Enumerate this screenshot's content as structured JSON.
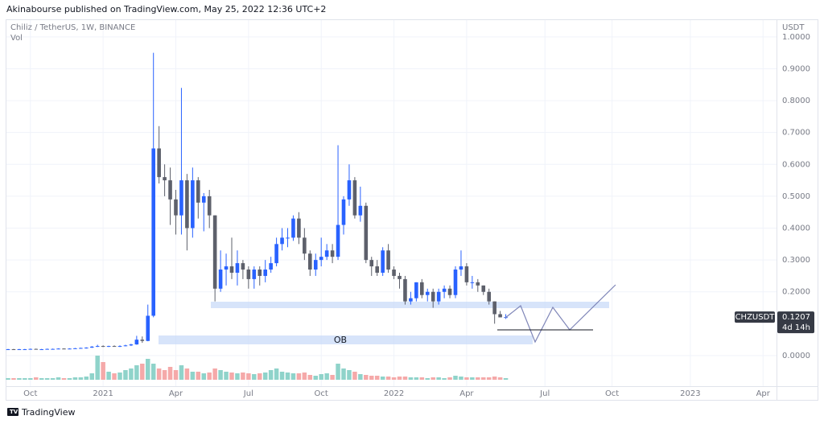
{
  "page": {
    "byline": "Akinabourse published on TradingView.com, May 25, 2022 12:36 UTC+2",
    "brand": "TradingView"
  },
  "chart_data": {
    "type": "candlestick",
    "title": "Chiliz / TetherUS, 1W, BINANCE",
    "volume_label": "Vol",
    "y_axis_label": "USDT",
    "symbol_tag": "CHZUSDT",
    "last_price": 0.1207,
    "countdown": "4d 14h",
    "annotation": "OB",
    "up_color": "#2962ff",
    "down_color": "#5d606b",
    "volume_up_color": "#8fd3ca",
    "volume_down_color": "#f5a9a9",
    "grid": true,
    "ylim": [
      -0.096,
      1.04
    ],
    "yticks": [
      {
        "value": 0,
        "label": "0.0000"
      },
      {
        "value": 0.2,
        "label": "0.2000"
      },
      {
        "value": 0.3,
        "label": "0.3000"
      },
      {
        "value": 0.4,
        "label": "0.4000"
      },
      {
        "value": 0.5,
        "label": "0.5000"
      },
      {
        "value": 0.6,
        "label": "0.6000"
      },
      {
        "value": 0.7,
        "label": "0.7000"
      },
      {
        "value": 0.8,
        "label": "0.8000"
      },
      {
        "value": 0.9,
        "label": "0.9000"
      },
      {
        "value": 1,
        "label": "1.0000"
      }
    ],
    "categories": [
      null,
      null,
      null,
      null,
      "Oct",
      null,
      null,
      null,
      null,
      null,
      null,
      null,
      null,
      null,
      null,
      null,
      null,
      "2021",
      null,
      null,
      null,
      null,
      null,
      null,
      null,
      null,
      null,
      null,
      null,
      null,
      "Apr",
      null,
      null,
      null,
      null,
      null,
      null,
      null,
      null,
      null,
      null,
      null,
      null,
      "Jul",
      null,
      null,
      null,
      null,
      null,
      null,
      null,
      null,
      null,
      null,
      null,
      null,
      "Oct",
      null,
      null,
      null,
      null,
      null,
      null,
      null,
      null,
      null,
      null,
      null,
      null,
      "2022",
      null,
      null,
      null,
      null,
      null,
      null,
      null,
      null,
      null,
      null,
      null,
      null,
      "Apr",
      null,
      null,
      null,
      null,
      null,
      null,
      null,
      null,
      null,
      null,
      null,
      null,
      null,
      "Jul",
      null,
      null,
      null,
      null,
      null,
      null,
      null,
      null,
      null,
      null,
      null,
      "Oct",
      null,
      null,
      null,
      null,
      null,
      null,
      null,
      null,
      null,
      null,
      null,
      null,
      null,
      "2023",
      null,
      null,
      null,
      null,
      null,
      null,
      null,
      null,
      null,
      null,
      null,
      null,
      "Apr",
      null,
      null
    ],
    "open": [
      0.019,
      0.02,
      0.019,
      0.02,
      0.02,
      0.021,
      0.02,
      0.02,
      0.021,
      0.021,
      0.022,
      0.021,
      0.022,
      0.023,
      0.024,
      0.025,
      0.028,
      0.03,
      0.029,
      0.03,
      0.029,
      0.03,
      0.032,
      0.035,
      0.05,
      0.046,
      0.125,
      0.65,
      0.56,
      0.55,
      0.49,
      0.44,
      0.55,
      0.4,
      0.55,
      0.48,
      0.5,
      0.44,
      0.21,
      0.27,
      0.28,
      0.26,
      0.29,
      0.27,
      0.24,
      0.27,
      0.25,
      0.27,
      0.29,
      0.35,
      0.37,
      0.37,
      0.43,
      0.37,
      0.32,
      0.27,
      0.3,
      0.31,
      0.33,
      0.31,
      0.41,
      0.49,
      0.55,
      0.44,
      0.47,
      0.3,
      0.28,
      0.26,
      0.33,
      0.27,
      0.25,
      0.24,
      0.17,
      0.18,
      0.23,
      0.19,
      0.2,
      0.17,
      0.2,
      0.21,
      0.19,
      0.27,
      0.28,
      0.23,
      0.23,
      0.22,
      0.2,
      0.17,
      0.13,
      0.12,
      null,
      null,
      null,
      null,
      null,
      null,
      null,
      null,
      null,
      null,
      null,
      null,
      null,
      null,
      null,
      null,
      null,
      null,
      null,
      null,
      null,
      null,
      null,
      null,
      null,
      null,
      null,
      null,
      null,
      null,
      null,
      null,
      null,
      null,
      null,
      null,
      null,
      null,
      null,
      null,
      null,
      null,
      null,
      null,
      null,
      null,
      null,
      null
    ],
    "high": [
      0.021,
      0.021,
      0.021,
      0.021,
      0.022,
      0.022,
      0.021,
      0.022,
      0.022,
      0.023,
      0.023,
      0.023,
      0.024,
      0.025,
      0.026,
      0.03,
      0.034,
      0.032,
      0.031,
      0.032,
      0.032,
      0.034,
      0.037,
      0.062,
      0.06,
      0.16,
      0.95,
      0.72,
      0.6,
      0.59,
      0.52,
      0.84,
      0.57,
      0.59,
      0.56,
      0.51,
      0.52,
      0.44,
      0.33,
      0.32,
      0.37,
      0.33,
      0.3,
      0.28,
      0.28,
      0.28,
      0.3,
      0.31,
      0.37,
      0.4,
      0.4,
      0.44,
      0.45,
      0.4,
      0.33,
      0.32,
      0.37,
      0.35,
      0.35,
      0.66,
      0.5,
      0.6,
      0.56,
      0.53,
      0.48,
      0.31,
      0.3,
      0.34,
      0.35,
      0.28,
      0.26,
      0.25,
      0.2,
      0.23,
      0.24,
      0.21,
      0.21,
      0.21,
      0.22,
      0.22,
      0.28,
      0.33,
      0.29,
      0.25,
      0.24,
      0.22,
      0.21,
      0.17,
      0.14,
      0.13,
      null,
      null,
      null,
      null,
      null,
      null,
      null,
      null,
      null,
      null,
      null,
      null,
      null,
      null,
      null,
      null,
      null,
      null,
      null,
      null,
      null,
      null,
      null,
      null,
      null,
      null,
      null,
      null,
      null,
      null,
      null,
      null,
      null,
      null,
      null,
      null,
      null,
      null,
      null,
      null,
      null,
      null,
      null,
      null,
      null,
      null,
      null,
      null
    ],
    "low": [
      0.018,
      0.018,
      0.018,
      0.019,
      0.019,
      0.019,
      0.019,
      0.019,
      0.02,
      0.02,
      0.02,
      0.02,
      0.021,
      0.022,
      0.022,
      0.024,
      0.027,
      0.027,
      0.027,
      0.028,
      0.027,
      0.029,
      0.03,
      0.034,
      0.04,
      0.045,
      0.12,
      0.54,
      0.5,
      0.41,
      0.38,
      0.38,
      0.33,
      0.37,
      0.43,
      0.39,
      0.4,
      0.17,
      0.2,
      0.22,
      0.24,
      0.22,
      0.24,
      0.21,
      0.21,
      0.22,
      0.23,
      0.26,
      0.28,
      0.33,
      0.34,
      0.36,
      0.35,
      0.3,
      0.25,
      0.25,
      0.28,
      0.3,
      0.29,
      0.3,
      0.38,
      0.47,
      0.43,
      0.42,
      0.29,
      0.25,
      0.25,
      0.25,
      0.26,
      0.24,
      0.21,
      0.16,
      0.16,
      0.17,
      0.18,
      0.17,
      0.15,
      0.16,
      0.18,
      0.18,
      0.18,
      0.25,
      0.22,
      0.21,
      0.2,
      0.19,
      0.16,
      0.1,
      0.12,
      0.115,
      null,
      null,
      null,
      null,
      null,
      null,
      null,
      null,
      null,
      null,
      null,
      null,
      null,
      null,
      null,
      null,
      null,
      null,
      null,
      null,
      null,
      null,
      null,
      null,
      null,
      null,
      null,
      null,
      null,
      null,
      null,
      null,
      null,
      null,
      null,
      null,
      null,
      null,
      null,
      null,
      null,
      null,
      null,
      null,
      null,
      null,
      null,
      null
    ],
    "close": [
      0.02,
      0.019,
      0.02,
      0.02,
      0.021,
      0.02,
      0.02,
      0.021,
      0.021,
      0.022,
      0.021,
      0.022,
      0.023,
      0.024,
      0.025,
      0.028,
      0.03,
      0.029,
      0.03,
      0.029,
      0.03,
      0.032,
      0.035,
      0.05,
      0.046,
      0.125,
      0.65,
      0.56,
      0.55,
      0.49,
      0.44,
      0.55,
      0.4,
      0.55,
      0.48,
      0.5,
      0.44,
      0.21,
      0.27,
      0.28,
      0.26,
      0.29,
      0.27,
      0.24,
      0.27,
      0.25,
      0.27,
      0.29,
      0.35,
      0.37,
      0.37,
      0.43,
      0.37,
      0.32,
      0.27,
      0.3,
      0.31,
      0.33,
      0.31,
      0.41,
      0.49,
      0.55,
      0.44,
      0.47,
      0.3,
      0.28,
      0.26,
      0.33,
      0.27,
      0.25,
      0.24,
      0.17,
      0.18,
      0.23,
      0.19,
      0.2,
      0.17,
      0.2,
      0.21,
      0.19,
      0.27,
      0.28,
      0.23,
      0.23,
      0.22,
      0.2,
      0.17,
      0.13,
      0.12,
      0.1207,
      null,
      null,
      null,
      null,
      null,
      null,
      null,
      null,
      null,
      null,
      null,
      null,
      null,
      null,
      null,
      null,
      null,
      null,
      null,
      null,
      null,
      null,
      null,
      null,
      null,
      null,
      null,
      null,
      null,
      null,
      null,
      null,
      null,
      null,
      null,
      null,
      null,
      null,
      null,
      null,
      null,
      null,
      null,
      null,
      null,
      null,
      null,
      null
    ],
    "volume": [
      2,
      2,
      2,
      2,
      2,
      3,
      2,
      2,
      2,
      3,
      2,
      2,
      3,
      3,
      4,
      8,
      30,
      22,
      10,
      8,
      9,
      12,
      14,
      18,
      20,
      26,
      20,
      14,
      12,
      16,
      12,
      18,
      14,
      10,
      10,
      8,
      9,
      14,
      12,
      10,
      9,
      8,
      9,
      8,
      7,
      8,
      9,
      12,
      14,
      10,
      9,
      8,
      8,
      9,
      6,
      5,
      7,
      8,
      6,
      20,
      14,
      12,
      10,
      7,
      6,
      5,
      5,
      4,
      4,
      3,
      4,
      4,
      3,
      3,
      3,
      2,
      3,
      3,
      2,
      3,
      5,
      4,
      3,
      3,
      3,
      3,
      3,
      4,
      3,
      2,
      null,
      null,
      null,
      null,
      null,
      null,
      null,
      null,
      null,
      null,
      null,
      null,
      null,
      null,
      null,
      null,
      null,
      null,
      null,
      null,
      null,
      null,
      null,
      null,
      null,
      null,
      null,
      null,
      null,
      null,
      null,
      null,
      null,
      null,
      null,
      null,
      null,
      null,
      null,
      null,
      null,
      null,
      null,
      null,
      null,
      null,
      null,
      null
    ]
  }
}
